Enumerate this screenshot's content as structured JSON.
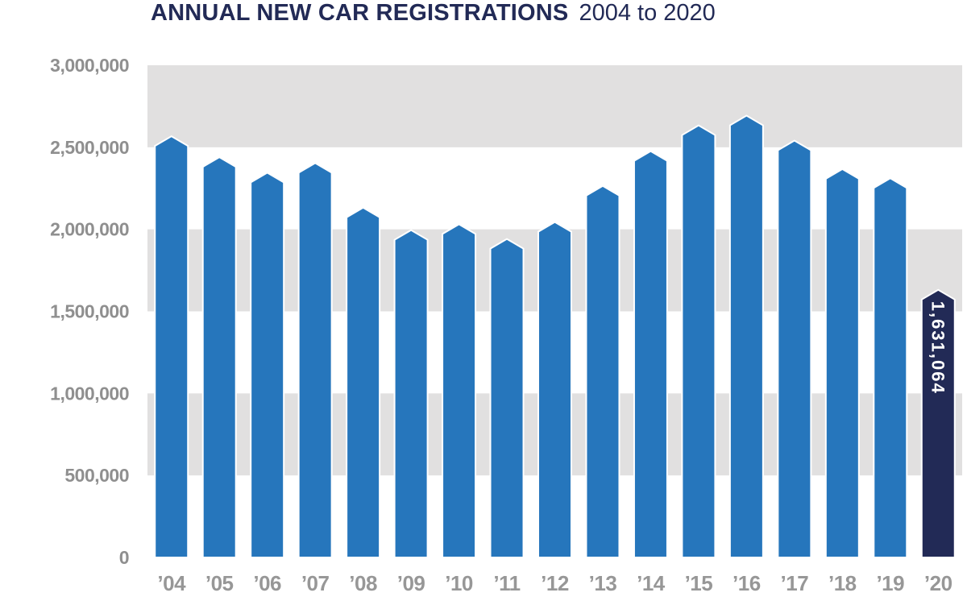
{
  "title": {
    "main": "ANNUAL NEW CAR REGISTRATIONS",
    "subtitle": "2004 to 2020"
  },
  "chart_data": {
    "type": "bar",
    "title": "ANNUAL NEW CAR REGISTRATIONS",
    "subtitle": "2004 to 2020",
    "categories": [
      "’04",
      "’05",
      "’06",
      "’07",
      "’08",
      "’09",
      "’10",
      "’11",
      "’12",
      "’13",
      "’14",
      "’15",
      "’16",
      "’17",
      "’18",
      "’19",
      "’20"
    ],
    "years": [
      2004,
      2005,
      2006,
      2007,
      2008,
      2009,
      2010,
      2011,
      2012,
      2013,
      2014,
      2015,
      2016,
      2017,
      2018,
      2019,
      2020
    ],
    "values": [
      2567269,
      2439717,
      2344864,
      2404007,
      2131795,
      1994999,
      2030846,
      1941253,
      2044609,
      2264737,
      2476435,
      2633503,
      2692786,
      2540617,
      2367147,
      2311140,
      1631064
    ],
    "highlight_index": 16,
    "value_label_shown": {
      "year": 2020,
      "text": "1,631,064"
    },
    "y_ticks": [
      "3,000,000",
      "2,500,000",
      "2,000,000",
      "1,500,000",
      "1,000,000",
      "500,000",
      "0"
    ],
    "ylim": [
      0,
      3000000
    ],
    "grid_step": 500000,
    "grid_style": "alternating horizontal bands",
    "legend": "none",
    "colors": {
      "bar": "#2676bc",
      "highlight_bar": "#222a56",
      "band": "#e1e0e0",
      "band_alt": "#ffffff",
      "axis_label": "#8f8f8f",
      "title": "#222a56",
      "value_label": "#ffffff"
    }
  }
}
